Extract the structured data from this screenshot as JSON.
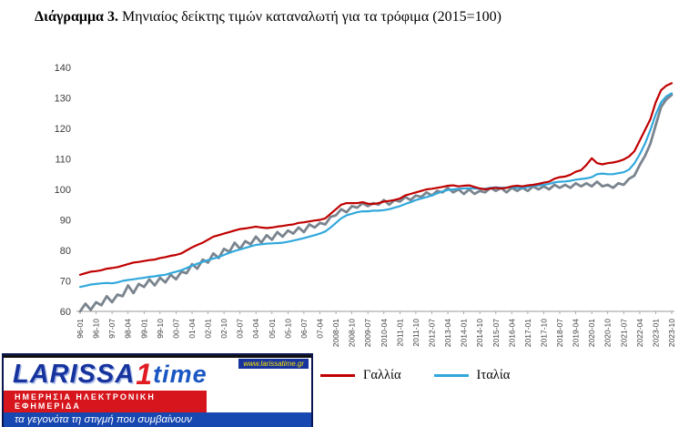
{
  "title": {
    "bold": "Διάγραμμα 3.",
    "rest": " Μηνιαίος δείκτης τιμών καταναλωτή για τα τρόφιμα (2015=100)"
  },
  "chart_data": {
    "type": "line",
    "title": "Μηνιαίος δείκτης τιμών καταναλωτή για τα τρόφιμα (2015=100)",
    "x_unit": "month",
    "x_start": "1996-01",
    "x_step_months": 3,
    "ylim": [
      60,
      140
    ],
    "y_ticks": [
      60,
      70,
      80,
      90,
      100,
      110,
      120,
      130,
      140
    ],
    "x_tick_step_months": 9,
    "x_tick_labels": [
      "96-01",
      "96-10",
      "97-07",
      "98-04",
      "99-01",
      "99-10",
      "00-07",
      "01-04",
      "02-01",
      "02-10",
      "03-07",
      "04-04",
      "05-01",
      "05-10",
      "06-07",
      "07-04",
      "2008-01",
      "2008-10",
      "2009-07",
      "2010-04",
      "2011-01",
      "2011-10",
      "2012-07",
      "2013-04",
      "2014-01",
      "2014-10",
      "2015-07",
      "2016-04",
      "2017-01",
      "2017-10",
      "2018-07",
      "2019-04",
      "2020-01",
      "2020-10",
      "2021-07",
      "2022-04",
      "2023-01",
      "2023-10"
    ],
    "grid": false,
    "legend_position": "bottom",
    "series": [
      {
        "name": "Γαλλία",
        "color": "#C00000",
        "width": 2.2,
        "in_legend": true,
        "values": [
          72.0,
          72.5,
          73.0,
          73.2,
          73.5,
          74.0,
          74.2,
          74.5,
          75.0,
          75.5,
          76.0,
          76.2,
          76.5,
          76.8,
          77.0,
          77.5,
          77.8,
          78.2,
          78.5,
          79.0,
          80.0,
          81.0,
          81.8,
          82.5,
          83.5,
          84.5,
          85.0,
          85.5,
          86.0,
          86.5,
          87.0,
          87.2,
          87.5,
          87.8,
          87.5,
          87.3,
          87.5,
          87.8,
          88.0,
          88.3,
          88.5,
          89.0,
          89.2,
          89.5,
          89.8,
          90.0,
          90.5,
          92.0,
          93.5,
          95.0,
          95.5,
          95.5,
          95.5,
          95.8,
          95.3,
          95.2,
          95.5,
          96.0,
          96.2,
          96.5,
          97.0,
          98.0,
          98.5,
          99.0,
          99.5,
          100.0,
          100.2,
          100.5,
          100.8,
          101.2,
          101.3,
          101.0,
          101.2,
          101.3,
          100.8,
          100.3,
          100.0,
          100.3,
          100.5,
          100.3,
          100.5,
          101.0,
          101.2,
          101.0,
          101.3,
          101.5,
          101.8,
          102.2,
          102.5,
          103.5,
          104.0,
          104.2,
          104.8,
          105.8,
          106.3,
          108.0,
          110.2,
          108.6,
          108.2,
          108.6,
          108.8,
          109.2,
          109.8,
          110.8,
          112.5,
          116.0,
          119.5,
          123.0,
          128.5,
          132.5,
          134.0,
          134.8
        ]
      },
      {
        "name": "Ιταλία",
        "color": "#31A8DC",
        "width": 2.2,
        "in_legend": true,
        "values": [
          68.0,
          68.4,
          68.8,
          69.0,
          69.2,
          69.3,
          69.2,
          69.5,
          70.0,
          70.3,
          70.5,
          70.8,
          71.0,
          71.3,
          71.5,
          71.8,
          72.0,
          72.5,
          73.0,
          73.5,
          74.2,
          75.0,
          75.6,
          76.2,
          76.8,
          77.3,
          77.8,
          78.5,
          79.2,
          79.8,
          80.3,
          80.8,
          81.3,
          81.8,
          82.0,
          82.2,
          82.3,
          82.4,
          82.5,
          82.8,
          83.2,
          83.6,
          84.0,
          84.5,
          85.0,
          85.5,
          86.2,
          87.5,
          89.0,
          90.5,
          91.5,
          92.0,
          92.5,
          92.8,
          92.8,
          93.0,
          93.0,
          93.2,
          93.5,
          94.0,
          94.5,
          95.2,
          95.8,
          96.5,
          97.0,
          97.5,
          98.0,
          98.7,
          99.3,
          99.8,
          100.0,
          100.2,
          100.3,
          100.4,
          100.3,
          100.2,
          100.2,
          100.5,
          100.7,
          100.5,
          100.6,
          100.7,
          100.5,
          100.4,
          100.8,
          101.2,
          101.3,
          101.5,
          101.8,
          102.3,
          102.5,
          102.6,
          102.8,
          103.2,
          103.4,
          103.6,
          104.0,
          105.0,
          105.2,
          105.0,
          105.0,
          105.3,
          105.6,
          106.5,
          108.5,
          111.5,
          115.0,
          119.5,
          124.5,
          128.5,
          130.5,
          131.5
        ]
      },
      {
        "name": "",
        "note": "unlabeled gray series (not shown in legend)",
        "color": "#7A848E",
        "width": 2.8,
        "in_legend": false,
        "values": [
          60.0,
          62.5,
          60.5,
          63.0,
          62.0,
          65.0,
          63.0,
          65.5,
          65.0,
          68.5,
          66.0,
          69.0,
          68.0,
          70.5,
          68.5,
          71.0,
          69.5,
          72.0,
          70.5,
          73.0,
          72.5,
          75.5,
          74.0,
          77.0,
          76.0,
          79.0,
          77.5,
          80.5,
          79.5,
          82.5,
          80.5,
          83.0,
          82.0,
          84.5,
          82.5,
          85.0,
          83.5,
          86.0,
          84.5,
          86.5,
          85.5,
          87.5,
          86.0,
          88.5,
          87.5,
          89.0,
          88.5,
          91.0,
          91.5,
          93.5,
          92.5,
          94.5,
          94.0,
          95.5,
          94.5,
          95.5,
          95.0,
          96.5,
          95.0,
          96.5,
          96.0,
          97.5,
          96.5,
          98.0,
          97.5,
          99.0,
          98.0,
          99.5,
          99.0,
          100.5,
          99.0,
          100.0,
          98.5,
          100.0,
          98.5,
          99.5,
          99.0,
          100.5,
          99.5,
          100.5,
          99.0,
          100.5,
          99.5,
          100.5,
          99.5,
          101.0,
          100.0,
          101.0,
          100.0,
          101.5,
          100.5,
          101.5,
          100.5,
          102.0,
          101.0,
          102.0,
          101.0,
          102.5,
          101.0,
          101.5,
          100.5,
          102.0,
          101.5,
          103.5,
          104.5,
          108.0,
          111.0,
          115.0,
          121.0,
          127.0,
          129.5,
          131.0
        ]
      }
    ]
  },
  "legend": {
    "items": [
      {
        "label": "Γαλλία",
        "color": "#C00000"
      },
      {
        "label": "Ιταλία",
        "color": "#31A8DC"
      }
    ]
  },
  "logo": {
    "brand_main": "LARISSA",
    "brand_number": "1",
    "brand_accent": "time",
    "url": "www.larissatime.gr",
    "tagline1": "ΗΜΕΡΗΣΙΑ ΗΛΕΚΤΡΟΝΙΚΗ ΕΦΗΜΕΡΙΔΑ",
    "tagline2": "τα γεγονότα τη στιγμή που συμβαίνουν"
  }
}
